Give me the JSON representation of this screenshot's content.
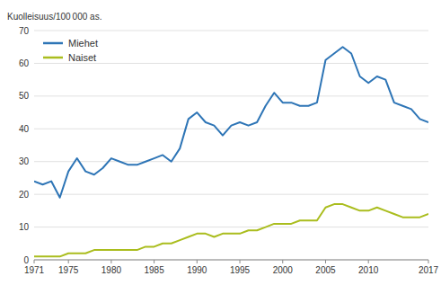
{
  "chart_data": {
    "type": "line",
    "ylabel": "Kuolleisuus/100 000 as.",
    "x": [
      1971,
      1972,
      1973,
      1974,
      1975,
      1976,
      1977,
      1978,
      1979,
      1980,
      1981,
      1982,
      1983,
      1984,
      1985,
      1986,
      1987,
      1988,
      1989,
      1990,
      1991,
      1992,
      1993,
      1994,
      1995,
      1996,
      1997,
      1998,
      1999,
      2000,
      2001,
      2002,
      2003,
      2004,
      2005,
      2006,
      2007,
      2008,
      2009,
      2010,
      2011,
      2012,
      2013,
      2014,
      2015,
      2016,
      2017
    ],
    "series": [
      {
        "name": "Miehet",
        "color": "#2E75B6",
        "values": [
          24,
          23,
          24,
          19,
          27,
          31,
          27,
          26,
          28,
          31,
          30,
          29,
          29,
          30,
          31,
          32,
          30,
          34,
          43,
          45,
          42,
          41,
          38,
          41,
          42,
          41,
          42,
          47,
          51,
          48,
          48,
          47,
          47,
          48,
          61,
          63,
          65,
          63,
          56,
          54,
          56,
          55,
          48,
          47,
          46,
          43,
          42
        ]
      },
      {
        "name": "Naiset",
        "color": "#AABD1E",
        "values": [
          1,
          1,
          1,
          1,
          2,
          2,
          2,
          3,
          3,
          3,
          3,
          3,
          3,
          4,
          4,
          5,
          5,
          6,
          7,
          8,
          8,
          7,
          8,
          8,
          8,
          9,
          9,
          10,
          11,
          11,
          11,
          12,
          12,
          12,
          16,
          17,
          17,
          16,
          15,
          15,
          16,
          15,
          14,
          13,
          13,
          13,
          14
        ]
      }
    ],
    "xlim": [
      1971,
      2017
    ],
    "xticks": [
      1971,
      1975,
      1980,
      1985,
      1990,
      1995,
      2000,
      2005,
      2010,
      2017
    ],
    "ylim": [
      0,
      70
    ],
    "yticks": [
      0,
      10,
      20,
      30,
      40,
      50,
      60,
      70
    ],
    "grid": true,
    "legend": "upper left"
  }
}
